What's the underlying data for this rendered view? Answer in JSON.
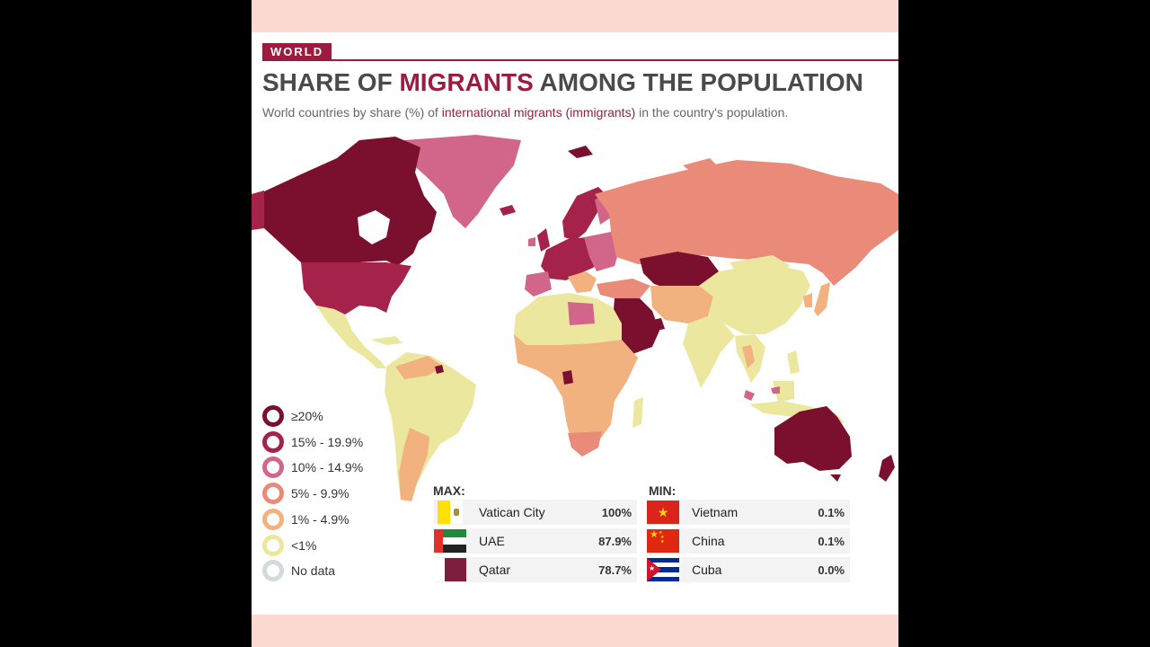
{
  "header": {
    "tag": "WORLD",
    "title_pre": "SHARE OF ",
    "title_highlight": "MIGRANTS",
    "title_post": " AMONG THE POPULATION",
    "subtitle_pre": "World countries by share (%) of ",
    "subtitle_highlight": "international migrants (immigrants)",
    "subtitle_post": " in the country's population."
  },
  "legend": [
    {
      "label": "≥20%",
      "color": "#7a0f2e"
    },
    {
      "label": "15% - 19.9%",
      "color": "#a5234a"
    },
    {
      "label": "10% - 14.9%",
      "color": "#d2658a"
    },
    {
      "label": "5% - 9.9%",
      "color": "#ea8a78"
    },
    {
      "label": "1% - 4.9%",
      "color": "#f2b27f"
    },
    {
      "label": "<1%",
      "color": "#ece79f"
    },
    {
      "label": "No data",
      "color": "#d4d9d9"
    }
  ],
  "max": {
    "heading": "MAX:",
    "items": [
      {
        "country": "Vatican City",
        "value": "100%",
        "flag": "vatican-flag-icon"
      },
      {
        "country": "UAE",
        "value": "87.9%",
        "flag": "uae-flag-icon"
      },
      {
        "country": "Qatar",
        "value": "78.7%",
        "flag": "qatar-flag-icon"
      }
    ]
  },
  "min": {
    "heading": "MIN:",
    "items": [
      {
        "country": "Vietnam",
        "value": "0.1%",
        "flag": "vietnam-flag-icon"
      },
      {
        "country": "China",
        "value": "0.1%",
        "flag": "china-flag-icon"
      },
      {
        "country": "Cuba",
        "value": "0.0%",
        "flag": "cuba-flag-icon"
      }
    ]
  }
}
